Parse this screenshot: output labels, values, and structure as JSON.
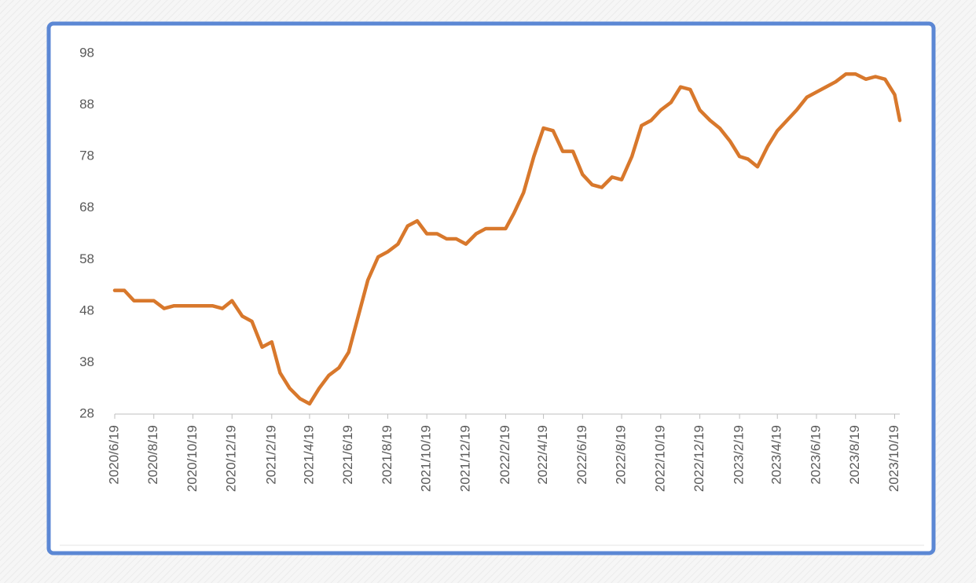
{
  "chart_data": {
    "type": "line",
    "x": [
      "2020/6/19",
      "2020/7/4",
      "2020/7/19",
      "2020/8/4",
      "2020/8/19",
      "2020/9/4",
      "2020/9/19",
      "2020/10/4",
      "2020/10/19",
      "2020/11/4",
      "2020/11/19",
      "2020/12/4",
      "2020/12/19",
      "2021/1/4",
      "2021/1/19",
      "2021/2/4",
      "2021/2/19",
      "2021/3/4",
      "2021/3/19",
      "2021/4/4",
      "2021/4/19",
      "2021/5/4",
      "2021/5/19",
      "2021/6/4",
      "2021/6/19",
      "2021/7/4",
      "2021/7/19",
      "2021/8/4",
      "2021/8/19",
      "2021/9/4",
      "2021/9/19",
      "2021/10/4",
      "2021/10/19",
      "2021/11/4",
      "2021/11/19",
      "2021/12/4",
      "2021/12/19",
      "2022/1/4",
      "2022/1/19",
      "2022/2/4",
      "2022/2/19",
      "2022/3/4",
      "2022/3/19",
      "2022/4/4",
      "2022/4/19",
      "2022/5/4",
      "2022/5/19",
      "2022/6/4",
      "2022/6/19",
      "2022/7/4",
      "2022/7/19",
      "2022/8/4",
      "2022/8/19",
      "2022/9/4",
      "2022/9/19",
      "2022/10/4",
      "2022/10/19",
      "2022/11/4",
      "2022/11/19",
      "2022/12/4",
      "2022/12/19",
      "2023/1/4",
      "2023/1/19",
      "2023/2/4",
      "2023/2/19",
      "2023/3/4",
      "2023/3/19",
      "2023/4/4",
      "2023/4/19",
      "2023/5/4",
      "2023/5/19",
      "2023/6/4",
      "2023/6/19",
      "2023/7/4",
      "2023/7/19",
      "2023/8/4",
      "2023/8/19",
      "2023/9/4",
      "2023/9/19",
      "2023/10/4",
      "2023/10/19",
      "2023/10/27"
    ],
    "series": [
      {
        "color": "#d8782c",
        "values": [
          52,
          52,
          50,
          50,
          50,
          48.5,
          49,
          49,
          49,
          49,
          49,
          48.5,
          50,
          47,
          46,
          41,
          42,
          36,
          33,
          31,
          30,
          33,
          35.5,
          37,
          40,
          47,
          54,
          58.5,
          59.5,
          61,
          64.5,
          65.5,
          63,
          63,
          62,
          62,
          61,
          63,
          64,
          64,
          64,
          67,
          71,
          78,
          83.5,
          83,
          79,
          79,
          74.5,
          72.5,
          72,
          74,
          73.5,
          78,
          84,
          85,
          87,
          88.5,
          91.5,
          91,
          87,
          85,
          83.5,
          81,
          78,
          77.5,
          76,
          80,
          83,
          85,
          87,
          89.5,
          90.5,
          91.5,
          92.5,
          94,
          94,
          93,
          93.5,
          93,
          90,
          85
        ]
      }
    ],
    "xlim": [
      "2020/6/19",
      "2023/10/27"
    ],
    "xticks": [
      "2020/6/19",
      "2020/8/19",
      "2020/10/19",
      "2020/12/19",
      "2021/2/19",
      "2021/4/19",
      "2021/6/19",
      "2021/8/19",
      "2021/10/19",
      "2021/12/19",
      "2022/2/19",
      "2022/4/19",
      "2022/6/19",
      "2022/8/19",
      "2022/10/19",
      "2022/12/19",
      "2023/2/19",
      "2023/4/19",
      "2023/6/19",
      "2023/8/19",
      "2023/10/19"
    ],
    "ylim": [
      28,
      98
    ],
    "yticks": [
      28,
      38,
      48,
      58,
      68,
      78,
      88,
      98
    ],
    "grid": false
  }
}
